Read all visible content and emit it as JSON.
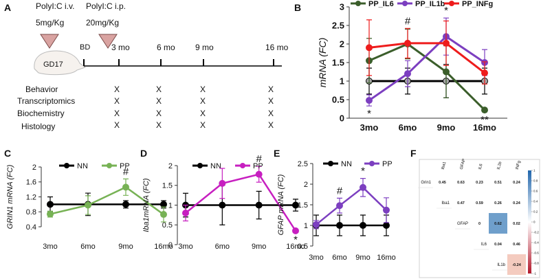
{
  "timeline": {
    "label": "A",
    "injections": [
      {
        "drug": "PolyI:C i.v.",
        "dose": "5mg/Kg"
      },
      {
        "drug": "PolyI:C i.p.",
        "dose": "20mg/Kg"
      }
    ],
    "embryo": "GD17",
    "birth": "BD",
    "timepoints": [
      "3 mo",
      "6 mo",
      "9 mo",
      "16 mo"
    ],
    "rows": [
      {
        "label": "Behavior",
        "cells": [
          "X",
          "X",
          "X",
          "X"
        ]
      },
      {
        "label": "Transcriptomics",
        "cells": [
          "X",
          "X",
          "X",
          "X"
        ]
      },
      {
        "label": "Biochemistry",
        "cells": [
          "X",
          "X",
          "X",
          "X"
        ]
      },
      {
        "label": "Histology",
        "cells": [
          "X",
          "X",
          "X",
          "X"
        ]
      }
    ]
  },
  "chart_data": [
    {
      "type": "line",
      "label": "B",
      "ylabel": "mRNA (FC)",
      "categories": [
        "3mo",
        "6mo",
        "9mo",
        "16mo"
      ],
      "ylim": [
        0,
        3
      ],
      "yticks": [
        0,
        0.5,
        1,
        1.5,
        2,
        2.5,
        3
      ],
      "x_axis_line": true,
      "legend": "top",
      "series": [
        {
          "color": "#000000",
          "marker_color": "#a6a6a6",
          "values": [
            1,
            1,
            1,
            1
          ],
          "errors": [
            0.35,
            0.35,
            0.45,
            0.35
          ]
        },
        {
          "name": "PP_IL6",
          "color": "#3b5e2b",
          "values": [
            1.55,
            2.0,
            1.25,
            0.22
          ],
          "errors": [
            0.6,
            0.4,
            0.7,
            0.05
          ]
        },
        {
          "name": "PP_IL1b",
          "color": "#7c3fc0",
          "values": [
            0.48,
            1.2,
            2.2,
            1.5
          ],
          "errors": [
            0.15,
            0.35,
            0.5,
            0.35
          ]
        },
        {
          "name": "PP_INFg",
          "color": "#ee1c1c",
          "values": [
            1.9,
            2.02,
            2.02,
            1.22
          ],
          "errors": [
            0.75,
            0.4,
            0.6,
            0.3
          ]
        }
      ],
      "annotations": [
        {
          "text": "*",
          "at": "3mo",
          "side": "below"
        },
        {
          "text": "#",
          "at": "6mo",
          "side": "above"
        },
        {
          "text": "*",
          "at": "9mo",
          "side": "above"
        },
        {
          "text": "**",
          "at": "16mo",
          "side": "below"
        }
      ]
    },
    {
      "type": "line",
      "label": "C",
      "ylabel": "GRIN1 mRNA (FC)",
      "categories": [
        "3mo",
        "6mo",
        "9mo",
        "16mo"
      ],
      "ylim": [
        0.4,
        2
      ],
      "yticks": [
        0.4,
        0.8,
        1.2,
        1.6,
        2
      ],
      "x_axis_line": false,
      "legend": "top",
      "series": [
        {
          "name": "NN",
          "color": "#000000",
          "values": [
            1,
            1,
            1,
            1
          ],
          "errors": [
            0.2,
            0.3,
            0.1,
            0.1
          ]
        },
        {
          "name": "PP",
          "color": "#77b255",
          "values": [
            0.74,
            0.98,
            1.46,
            0.73
          ],
          "errors": [
            0.08,
            0.25,
            0.22,
            0.2
          ]
        }
      ],
      "annotations": [
        {
          "text": "#",
          "at": "9mo",
          "side": "above"
        }
      ]
    },
    {
      "type": "line",
      "label": "D",
      "ylabel": "Iba1mRNA (FC)",
      "categories": [
        "3mo",
        "6mo",
        "9mo",
        "16mo"
      ],
      "ylim": [
        0,
        2
      ],
      "yticks": [
        0,
        0.5,
        1,
        1.5,
        2
      ],
      "x_axis_line": false,
      "legend": "top",
      "series": [
        {
          "name": "NN",
          "color": "#000000",
          "values": [
            1,
            1,
            1,
            1
          ],
          "errors": [
            0.3,
            0.5,
            0.35,
            0.15
          ]
        },
        {
          "name": "PP",
          "color": "#c71fc0",
          "values": [
            0.8,
            1.55,
            1.78,
            0.35
          ],
          "errors": [
            0.2,
            0.38,
            0.2,
            0.03
          ]
        }
      ],
      "annotations": [
        {
          "text": "#",
          "at": "9mo",
          "side": "above"
        },
        {
          "text": "*",
          "at": "16mo",
          "side": "below"
        }
      ]
    },
    {
      "type": "line",
      "label": "E",
      "ylabel": "GFAP mRNA (FC)",
      "categories": [
        "3mo",
        "6mo",
        "9mo",
        "16mo"
      ],
      "ylim": [
        0.5,
        2.5
      ],
      "yticks": [
        0.5,
        1,
        1.5,
        2,
        2.5
      ],
      "x_axis_line": false,
      "legend": "top",
      "series": [
        {
          "name": "NN",
          "color": "#000000",
          "values": [
            1,
            1,
            1,
            1
          ],
          "errors": [
            0.25,
            0.25,
            0.25,
            0.25
          ]
        },
        {
          "name": "PP",
          "color": "#7c3fc0",
          "values": [
            1.02,
            1.48,
            1.92,
            1.37
          ],
          "errors": [
            0.1,
            0.18,
            0.22,
            0.3
          ]
        }
      ],
      "annotations": [
        {
          "text": "#",
          "at": "6mo",
          "side": "above"
        },
        {
          "text": "*",
          "at": "9mo",
          "side": "above"
        }
      ]
    }
  ],
  "correlation": {
    "label": "F",
    "columns": [
      "Iba1",
      "GFAP",
      "IL6",
      "IL1b",
      "INFg"
    ],
    "rows": [
      {
        "label": "Grin1",
        "values": [
          0.45,
          0.63,
          0.23,
          0.51,
          0.24
        ],
        "colors": [
          null,
          null,
          null,
          null,
          null
        ]
      },
      {
        "label": "Iba1",
        "values": [
          0.47,
          0.59,
          0.26,
          0.24
        ],
        "colors": [
          null,
          null,
          null,
          null
        ]
      },
      {
        "label": "GFAP",
        "values": [
          0,
          0.62,
          0.02
        ],
        "colors": [
          null,
          "#6f9fcb",
          null
        ]
      },
      {
        "label": "IL6",
        "values": [
          0.04,
          0.46
        ],
        "colors": [
          null,
          null
        ]
      },
      {
        "label": "IL1b",
        "values": [
          -0.24
        ],
        "colors": [
          "#f4cbbf"
        ]
      }
    ],
    "colorbar": {
      "range": [
        -1,
        1
      ],
      "ticks": [
        1,
        0.8,
        0.6,
        0.4,
        0.2,
        0,
        -0.2,
        -0.4,
        -0.6,
        -0.8,
        -1
      ],
      "colors": [
        "#b2182b",
        "#ffffff",
        "#2166ac"
      ]
    }
  }
}
